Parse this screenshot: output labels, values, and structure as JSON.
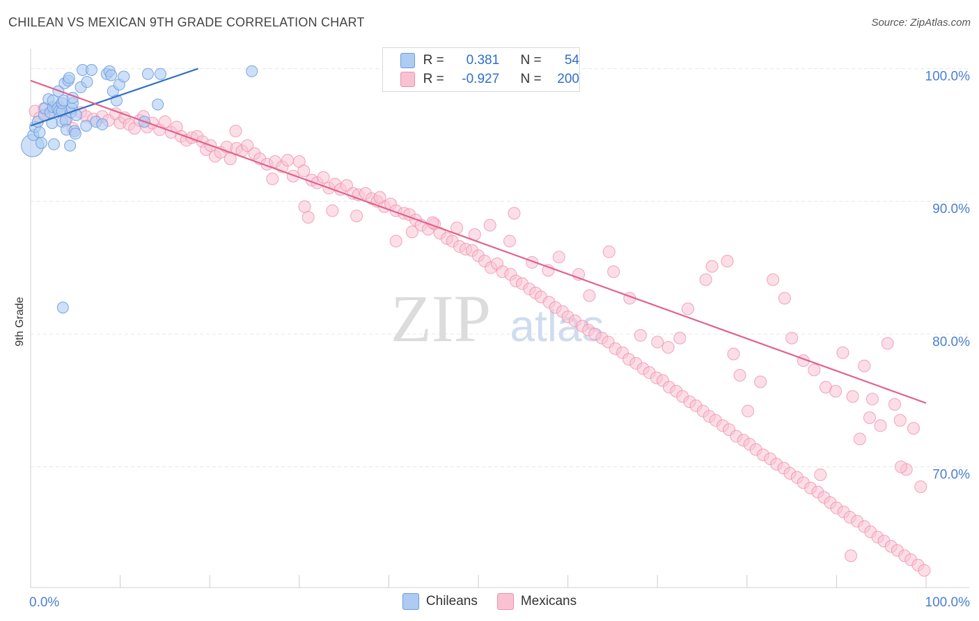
{
  "title": "CHILEAN VS MEXICAN 9TH GRADE CORRELATION CHART",
  "source": "Source: ZipAtlas.com",
  "watermark": {
    "zip": "ZIP",
    "atlas": "atlas"
  },
  "colors": {
    "blue_fill": "#aecbf2",
    "blue_stroke": "#6b9be0",
    "blue_line": "#2f6fc7",
    "pink_fill": "#f9c2d3",
    "pink_stroke": "#ee8fae",
    "pink_line": "#e2608c",
    "axis_label": "#4a7fd0",
    "grid": "#e6e6e6"
  },
  "legend": {
    "rows": [
      {
        "r_label": "R =",
        "r_value": "0.381",
        "n_label": "N =",
        "n_value": "54"
      },
      {
        "r_label": "R =",
        "r_value": "-0.927",
        "n_label": "N =",
        "n_value": "200"
      }
    ],
    "bottom": [
      {
        "label": "Chileans"
      },
      {
        "label": "Mexicans"
      }
    ]
  },
  "chart_data": {
    "type": "scatter",
    "title": "CHILEAN VS MEXICAN 9TH GRADE CORRELATION CHART",
    "xlabel": "",
    "ylabel": "9th Grade",
    "xlim": [
      0,
      100
    ],
    "ylim": [
      60.9,
      101.5
    ],
    "x_tick_labels": [
      {
        "value": 0,
        "label": "0.0%"
      },
      {
        "value": 100,
        "label": "100.0%"
      }
    ],
    "y_tick_labels": [
      {
        "value": 100,
        "label": "100.0%"
      },
      {
        "value": 90,
        "label": "90.0%"
      },
      {
        "value": 80,
        "label": "80.0%"
      },
      {
        "value": 70,
        "label": "70.0%"
      }
    ],
    "series": [
      {
        "name": "Chileans",
        "r": 0.381,
        "n": 54,
        "trend": [
          {
            "x": 0,
            "y": 95.7
          },
          {
            "x": 18.7,
            "y": 100.0
          }
        ],
        "points": [
          [
            0.2,
            94.2
          ],
          [
            0.3,
            95.0
          ],
          [
            0.5,
            95.6
          ],
          [
            0.8,
            96.0
          ],
          [
            1.0,
            95.2
          ],
          [
            1.2,
            94.4
          ],
          [
            1.5,
            96.5
          ],
          [
            1.6,
            97.0
          ],
          [
            2.0,
            97.7
          ],
          [
            2.2,
            96.7
          ],
          [
            2.4,
            95.9
          ],
          [
            2.5,
            97.1
          ],
          [
            2.5,
            97.6
          ],
          [
            2.6,
            94.3
          ],
          [
            3.0,
            97.0
          ],
          [
            3.1,
            98.3
          ],
          [
            3.2,
            96.8
          ],
          [
            3.5,
            96.0
          ],
          [
            3.5,
            96.8
          ],
          [
            3.5,
            97.4
          ],
          [
            3.7,
            97.6
          ],
          [
            3.8,
            98.9
          ],
          [
            3.9,
            96.1
          ],
          [
            4.0,
            95.4
          ],
          [
            4.2,
            99.1
          ],
          [
            4.3,
            99.3
          ],
          [
            4.4,
            94.2
          ],
          [
            4.5,
            96.7
          ],
          [
            4.6,
            97.0
          ],
          [
            4.7,
            97.4
          ],
          [
            4.7,
            97.8
          ],
          [
            4.9,
            95.3
          ],
          [
            5.0,
            95.1
          ],
          [
            5.1,
            96.5
          ],
          [
            5.6,
            98.6
          ],
          [
            5.8,
            99.9
          ],
          [
            6.2,
            95.7
          ],
          [
            6.3,
            99.0
          ],
          [
            6.8,
            99.9
          ],
          [
            7.3,
            96.0
          ],
          [
            8.0,
            95.8
          ],
          [
            8.5,
            99.6
          ],
          [
            8.8,
            99.8
          ],
          [
            9.0,
            99.5
          ],
          [
            9.2,
            98.3
          ],
          [
            9.6,
            97.6
          ],
          [
            9.9,
            98.8
          ],
          [
            10.4,
            99.4
          ],
          [
            12.7,
            96.0
          ],
          [
            13.1,
            99.6
          ],
          [
            14.2,
            97.3
          ],
          [
            14.5,
            99.6
          ],
          [
            24.7,
            99.8
          ],
          [
            3.6,
            82.0
          ]
        ]
      },
      {
        "name": "Mexicans",
        "r": -0.927,
        "n": 200,
        "trend": [
          {
            "x": 0,
            "y": 99.1
          },
          {
            "x": 100,
            "y": 74.8
          }
        ],
        "points": [
          [
            0.5,
            96.8
          ],
          [
            1.0,
            96.3
          ],
          [
            1.5,
            97.0
          ],
          [
            2.0,
            96.6
          ],
          [
            2.5,
            96.9
          ],
          [
            3.2,
            97.1
          ],
          [
            4.0,
            96.2
          ],
          [
            4.7,
            95.5
          ],
          [
            5.6,
            96.7
          ],
          [
            6.2,
            96.4
          ],
          [
            7.0,
            96.2
          ],
          [
            8.0,
            96.4
          ],
          [
            8.7,
            96.1
          ],
          [
            9.5,
            96.6
          ],
          [
            10.0,
            95.9
          ],
          [
            10.5,
            96.3
          ],
          [
            11.0,
            95.8
          ],
          [
            11.6,
            95.5
          ],
          [
            12.2,
            96.1
          ],
          [
            12.6,
            96.4
          ],
          [
            13.0,
            95.6
          ],
          [
            13.6,
            95.9
          ],
          [
            14.4,
            95.4
          ],
          [
            15.0,
            96.0
          ],
          [
            15.7,
            95.2
          ],
          [
            16.3,
            95.6
          ],
          [
            16.8,
            94.9
          ],
          [
            17.4,
            94.6
          ],
          [
            18.0,
            94.8
          ],
          [
            18.6,
            94.9
          ],
          [
            19.2,
            94.5
          ],
          [
            19.6,
            93.9
          ],
          [
            20.1,
            94.2
          ],
          [
            20.6,
            93.4
          ],
          [
            21.2,
            93.7
          ],
          [
            21.9,
            94.1
          ],
          [
            22.3,
            93.2
          ],
          [
            23.0,
            94.0
          ],
          [
            23.6,
            93.8
          ],
          [
            24.2,
            94.2
          ],
          [
            25.0,
            93.6
          ],
          [
            25.6,
            93.2
          ],
          [
            26.4,
            92.8
          ],
          [
            27.3,
            93.0
          ],
          [
            28.1,
            92.6
          ],
          [
            28.7,
            93.1
          ],
          [
            29.3,
            91.9
          ],
          [
            30.0,
            93.0
          ],
          [
            30.5,
            92.3
          ],
          [
            31.4,
            91.6
          ],
          [
            32.0,
            91.4
          ],
          [
            32.7,
            91.8
          ],
          [
            33.3,
            91.0
          ],
          [
            34.0,
            91.3
          ],
          [
            34.6,
            90.9
          ],
          [
            35.3,
            91.2
          ],
          [
            36.0,
            90.6
          ],
          [
            36.6,
            90.5
          ],
          [
            37.4,
            90.6
          ],
          [
            38.1,
            90.2
          ],
          [
            38.7,
            90.0
          ],
          [
            39.5,
            89.6
          ],
          [
            40.2,
            89.8
          ],
          [
            40.8,
            89.3
          ],
          [
            41.7,
            89.1
          ],
          [
            42.3,
            89.0
          ],
          [
            43.0,
            88.6
          ],
          [
            43.6,
            88.2
          ],
          [
            44.4,
            87.9
          ],
          [
            45.1,
            88.3
          ],
          [
            45.7,
            87.6
          ],
          [
            46.5,
            87.2
          ],
          [
            47.1,
            87.0
          ],
          [
            47.9,
            86.6
          ],
          [
            48.6,
            86.4
          ],
          [
            49.3,
            86.3
          ],
          [
            50.0,
            85.9
          ],
          [
            50.7,
            85.5
          ],
          [
            51.4,
            85.0
          ],
          [
            52.1,
            85.3
          ],
          [
            52.7,
            84.7
          ],
          [
            53.6,
            84.5
          ],
          [
            54.2,
            84.0
          ],
          [
            54.9,
            83.8
          ],
          [
            55.7,
            83.4
          ],
          [
            56.4,
            83.1
          ],
          [
            57.0,
            82.8
          ],
          [
            57.9,
            82.4
          ],
          [
            58.6,
            82.0
          ],
          [
            59.4,
            81.7
          ],
          [
            60.0,
            81.3
          ],
          [
            60.8,
            81.0
          ],
          [
            61.6,
            80.6
          ],
          [
            62.3,
            80.3
          ],
          [
            63.0,
            80.0
          ],
          [
            63.8,
            79.7
          ],
          [
            64.5,
            79.4
          ],
          [
            65.3,
            78.9
          ],
          [
            66.1,
            78.6
          ],
          [
            66.8,
            78.1
          ],
          [
            67.6,
            77.8
          ],
          [
            68.4,
            77.4
          ],
          [
            69.1,
            77.1
          ],
          [
            69.9,
            76.7
          ],
          [
            70.6,
            76.5
          ],
          [
            71.3,
            76.0
          ],
          [
            72.1,
            75.7
          ],
          [
            72.8,
            75.3
          ],
          [
            73.6,
            74.9
          ],
          [
            74.3,
            74.6
          ],
          [
            75.1,
            74.2
          ],
          [
            75.8,
            73.8
          ],
          [
            76.5,
            73.5
          ],
          [
            77.3,
            73.1
          ],
          [
            78.0,
            72.8
          ],
          [
            78.8,
            72.3
          ],
          [
            79.6,
            72.0
          ],
          [
            80.3,
            71.7
          ],
          [
            81.0,
            71.3
          ],
          [
            81.8,
            70.9
          ],
          [
            82.6,
            70.6
          ],
          [
            83.3,
            70.2
          ],
          [
            84.1,
            69.9
          ],
          [
            84.8,
            69.5
          ],
          [
            85.6,
            69.2
          ],
          [
            86.3,
            68.8
          ],
          [
            87.1,
            68.4
          ],
          [
            87.9,
            68.1
          ],
          [
            88.6,
            67.7
          ],
          [
            89.3,
            67.3
          ],
          [
            90.0,
            66.9
          ],
          [
            90.8,
            66.6
          ],
          [
            91.5,
            66.2
          ],
          [
            92.3,
            65.9
          ],
          [
            93.1,
            65.5
          ],
          [
            93.8,
            65.1
          ],
          [
            94.6,
            64.7
          ],
          [
            95.3,
            64.4
          ],
          [
            96.1,
            64.0
          ],
          [
            96.8,
            63.7
          ],
          [
            97.6,
            63.3
          ],
          [
            98.3,
            63.0
          ],
          [
            99.1,
            62.6
          ],
          [
            99.8,
            62.2
          ],
          [
            22.9,
            95.3
          ],
          [
            27.0,
            91.7
          ],
          [
            30.6,
            89.6
          ],
          [
            31.0,
            88.8
          ],
          [
            33.7,
            89.3
          ],
          [
            36.4,
            88.9
          ],
          [
            39.0,
            90.3
          ],
          [
            40.8,
            87.0
          ],
          [
            42.6,
            87.7
          ],
          [
            44.9,
            88.4
          ],
          [
            47.6,
            88.0
          ],
          [
            49.6,
            87.5
          ],
          [
            51.3,
            88.2
          ],
          [
            53.5,
            87.0
          ],
          [
            54.0,
            89.1
          ],
          [
            56.0,
            85.4
          ],
          [
            57.8,
            84.8
          ],
          [
            59.0,
            85.8
          ],
          [
            61.2,
            84.5
          ],
          [
            62.4,
            82.9
          ],
          [
            64.6,
            86.2
          ],
          [
            65.1,
            84.7
          ],
          [
            66.9,
            82.7
          ],
          [
            68.1,
            79.9
          ],
          [
            70.0,
            79.4
          ],
          [
            71.2,
            79.0
          ],
          [
            72.5,
            79.7
          ],
          [
            73.4,
            81.9
          ],
          [
            75.4,
            84.1
          ],
          [
            76.1,
            85.1
          ],
          [
            77.8,
            85.5
          ],
          [
            78.5,
            78.5
          ],
          [
            79.2,
            76.9
          ],
          [
            80.1,
            74.2
          ],
          [
            81.5,
            76.4
          ],
          [
            82.9,
            84.1
          ],
          [
            84.2,
            82.7
          ],
          [
            85.0,
            79.7
          ],
          [
            86.3,
            78.0
          ],
          [
            87.5,
            77.3
          ],
          [
            88.8,
            76.0
          ],
          [
            89.9,
            75.7
          ],
          [
            90.7,
            78.6
          ],
          [
            91.8,
            75.3
          ],
          [
            92.6,
            72.1
          ],
          [
            93.1,
            77.6
          ],
          [
            94.0,
            75.1
          ],
          [
            94.9,
            73.1
          ],
          [
            95.7,
            79.3
          ],
          [
            96.5,
            74.7
          ],
          [
            97.1,
            73.5
          ],
          [
            97.8,
            69.8
          ],
          [
            98.6,
            72.9
          ],
          [
            99.4,
            68.5
          ],
          [
            91.6,
            63.3
          ],
          [
            88.2,
            69.4
          ],
          [
            93.7,
            73.7
          ],
          [
            97.2,
            70.0
          ]
        ]
      }
    ]
  }
}
